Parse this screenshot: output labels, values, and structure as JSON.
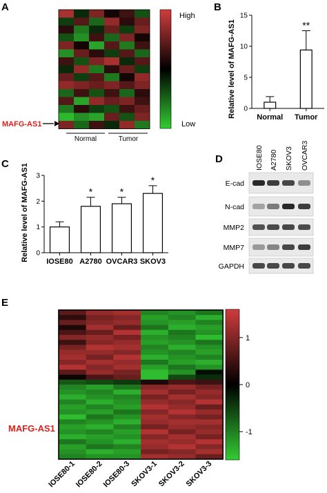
{
  "panels": {
    "a": "A",
    "b": "B",
    "c": "C",
    "d": "D",
    "e": "E"
  },
  "colors": {
    "high": "#d13c3c",
    "mid": "#000000",
    "low": "#33cc33",
    "label_red": "#e0201b"
  },
  "panel_a": {
    "legend_high": "High",
    "legend_low": "Low",
    "gene_label": "MAFG-AS1",
    "group_labels": [
      "Normal",
      "Tumor"
    ]
  },
  "panel_d": {
    "lanes": [
      "IOSE80",
      "A2780",
      "SKOV3",
      "OVCAR3"
    ],
    "bands": [
      "E-cad",
      "N-cad",
      "MMP2",
      "MMP7",
      "GAPDH"
    ],
    "intensity": [
      [
        0.95,
        0.85,
        0.8,
        0.45
      ],
      [
        0.35,
        0.55,
        0.95,
        0.85
      ],
      [
        0.75,
        0.78,
        0.8,
        0.78
      ],
      [
        0.4,
        0.5,
        0.8,
        0.85
      ],
      [
        0.8,
        0.8,
        0.8,
        0.8
      ]
    ]
  },
  "panel_e": {
    "gene_label": "MAFG-AS1",
    "columns": [
      "IOSE80-1",
      "IOSE80-2",
      "IOSE80-3",
      "SKOV3-1",
      "SKOV3-2",
      "SKOV3-3"
    ],
    "colorbar_ticks": [
      "1",
      "0",
      "-1"
    ],
    "colorbar_values": [
      1,
      0,
      -1
    ],
    "colorbar_range": [
      -1.6,
      1.6
    ]
  },
  "chart_data": [
    {
      "type": "heatmap",
      "panel": "A",
      "rows": 15,
      "columns": 6,
      "groups": [
        "Normal",
        "Normal",
        "Normal",
        "Tumor",
        "Tumor",
        "Tumor"
      ],
      "colorbar": [
        "High",
        "Low"
      ],
      "highlighted_row": "MAFG-AS1",
      "values": [
        [
          0.8,
          -0.2,
          0.6,
          0.1,
          0.3,
          -0.4
        ],
        [
          -0.3,
          0.4,
          -0.5,
          0.7,
          0.2,
          0.5
        ],
        [
          0.2,
          -0.6,
          -0.2,
          0.5,
          -0.3,
          0.6
        ],
        [
          -0.4,
          -0.7,
          0.3,
          -0.5,
          0.6,
          0.1
        ],
        [
          0.6,
          0.1,
          -0.8,
          0.4,
          -0.6,
          0.3
        ],
        [
          -0.7,
          0.5,
          0.2,
          -0.3,
          0.4,
          -0.5
        ],
        [
          0.3,
          -0.4,
          0.6,
          0.8,
          -0.2,
          0.4
        ],
        [
          -0.2,
          0.7,
          -0.6,
          0.2,
          0.5,
          -0.3
        ],
        [
          0.5,
          -0.3,
          0.4,
          -0.6,
          0.1,
          0.7
        ],
        [
          0.7,
          0.6,
          0.5,
          0.6,
          0.4,
          0.6
        ],
        [
          -0.5,
          0.3,
          -0.4,
          0.3,
          -0.5,
          0.2
        ],
        [
          0.4,
          -0.8,
          0.7,
          0.5,
          0.6,
          0.3
        ],
        [
          -0.6,
          0.2,
          -0.3,
          -0.4,
          0.3,
          0.5
        ],
        [
          -0.9,
          -0.7,
          -0.8,
          0.5,
          -0.4,
          0.6
        ],
        [
          0.6,
          -0.5,
          0.3,
          -0.2,
          0.7,
          -0.6
        ]
      ]
    },
    {
      "type": "bar",
      "panel": "B",
      "categories": [
        "Normal",
        "Tumor"
      ],
      "values": [
        1.0,
        9.4
      ],
      "errors": [
        0.9,
        3.1
      ],
      "significance": [
        "",
        "**"
      ],
      "ylabel": "Relative level of MAFG-AS1",
      "ylim": [
        0,
        15
      ],
      "yticks": [
        0,
        5,
        10,
        15
      ]
    },
    {
      "type": "bar",
      "panel": "C",
      "categories": [
        "IOSE80",
        "A2780",
        "OVCAR3",
        "SKOV3"
      ],
      "values": [
        1.0,
        1.8,
        1.9,
        2.3
      ],
      "errors": [
        0.2,
        0.35,
        0.25,
        0.3
      ],
      "significance": [
        "",
        "*",
        "*",
        "*"
      ],
      "ylabel": "Relative level of MAFG-AS1",
      "ylim": [
        0,
        3
      ],
      "yticks": [
        0,
        1,
        2,
        3
      ]
    },
    {
      "type": "heatmap",
      "panel": "E",
      "columns": [
        "IOSE80-1",
        "IOSE80-2",
        "IOSE80-3",
        "SKOV3-1",
        "SKOV3-2",
        "SKOV3-3"
      ],
      "rows": 30,
      "highlighted_row": "MAFG-AS1",
      "colorbar_ticks": [
        1,
        0,
        -1
      ],
      "values": [
        [
          0.6,
          1.0,
          1.1,
          -0.9,
          -1.0,
          -0.8
        ],
        [
          0.3,
          0.8,
          0.9,
          -1.1,
          -0.9,
          -1.2
        ],
        [
          0.7,
          0.9,
          1.0,
          -1.0,
          -1.1,
          -0.9
        ],
        [
          0.2,
          1.1,
          0.7,
          -0.8,
          -1.2,
          -1.1
        ],
        [
          0.5,
          0.7,
          1.2,
          -1.2,
          -0.8,
          -1.0
        ],
        [
          0.9,
          1.0,
          0.8,
          -1.0,
          -0.9,
          -1.3
        ],
        [
          0.4,
          0.9,
          1.0,
          -1.1,
          -1.0,
          -0.8
        ],
        [
          0.8,
          1.2,
          1.1,
          -0.9,
          -1.2,
          -1.0
        ],
        [
          1.0,
          1.0,
          0.9,
          -1.0,
          -0.9,
          -1.1
        ],
        [
          1.1,
          0.8,
          1.2,
          -1.2,
          -1.0,
          -0.9
        ],
        [
          0.9,
          1.1,
          1.0,
          -0.8,
          -1.1,
          -1.2
        ],
        [
          1.2,
          0.9,
          1.1,
          -1.1,
          -0.8,
          -1.0
        ],
        [
          0.6,
          1.0,
          0.8,
          -1.3,
          -1.0,
          -0.1
        ],
        [
          0.1,
          0.5,
          0.7,
          -1.3,
          -0.5,
          -0.3
        ],
        [
          -0.6,
          -0.5,
          -0.4,
          0.2,
          0.5,
          0.4
        ],
        [
          -0.9,
          -1.1,
          -0.8,
          0.9,
          1.0,
          0.8
        ],
        [
          -1.0,
          -0.9,
          -1.2,
          1.1,
          0.8,
          1.0
        ],
        [
          -1.2,
          -1.0,
          -0.9,
          0.8,
          1.1,
          0.9
        ],
        [
          -0.9,
          -1.2,
          -1.0,
          1.0,
          0.9,
          1.2
        ],
        [
          -1.1,
          -0.9,
          -1.1,
          1.2,
          1.0,
          0.7
        ],
        [
          -1.0,
          -1.1,
          -0.8,
          0.9,
          1.2,
          1.0
        ],
        [
          -1.3,
          -0.8,
          -1.0,
          1.1,
          0.9,
          0.8
        ],
        [
          -0.9,
          -1.0,
          -1.2,
          1.0,
          1.1,
          1.1
        ],
        [
          -1.1,
          -1.2,
          -0.9,
          0.8,
          1.0,
          0.9
        ],
        [
          -1.0,
          -0.9,
          -1.1,
          1.2,
          0.8,
          1.0
        ],
        [
          -1.2,
          -1.1,
          -1.0,
          0.9,
          1.1,
          0.8
        ],
        [
          -0.8,
          -1.0,
          -1.2,
          1.1,
          1.0,
          1.2
        ],
        [
          -1.1,
          -0.8,
          -0.9,
          1.0,
          1.2,
          0.9
        ],
        [
          -1.0,
          -1.2,
          -1.1,
          0.8,
          0.9,
          1.1
        ],
        [
          -0.9,
          -1.0,
          -1.0,
          1.1,
          1.0,
          0.7
        ]
      ]
    }
  ]
}
